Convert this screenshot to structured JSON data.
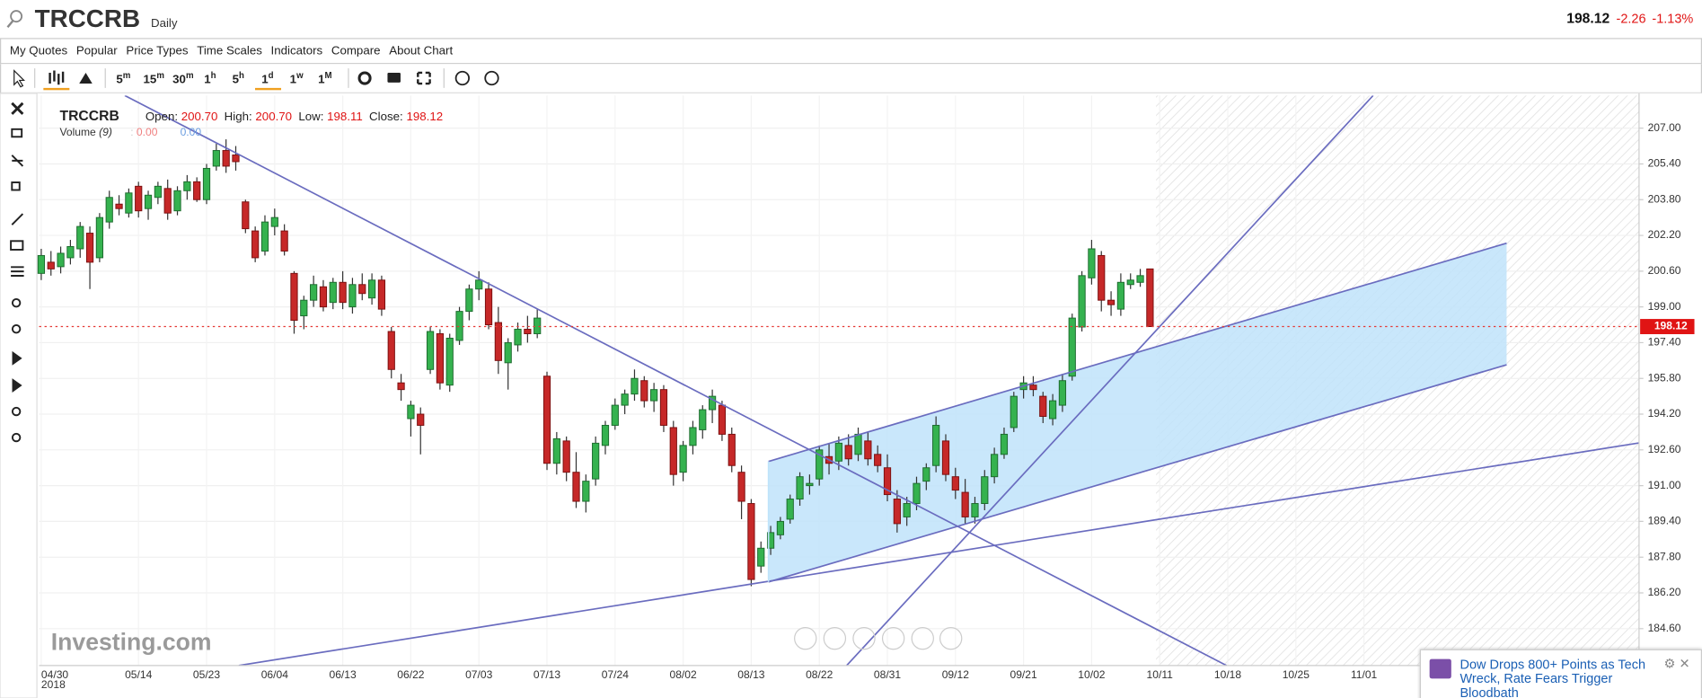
{
  "header": {
    "symbol": "TRCCRB",
    "interval": "Daily",
    "price": "198.12",
    "change": "-2.26",
    "change_pct": "-1.13%"
  },
  "menu": [
    "My Quotes",
    "Popular",
    "Price Types",
    "Time Scales",
    "Indicators",
    "Compare",
    "About Chart"
  ],
  "toolbar": {
    "timeframes": [
      {
        "num": "5",
        "unit": "m"
      },
      {
        "num": "15",
        "unit": "m"
      },
      {
        "num": "30",
        "unit": "m"
      },
      {
        "num": "1",
        "unit": "h"
      },
      {
        "num": "5",
        "unit": "h"
      },
      {
        "num": "1",
        "unit": "d"
      },
      {
        "num": "1",
        "unit": "w"
      },
      {
        "num": "1",
        "unit": "M"
      }
    ]
  },
  "chart_data": {
    "type": "candlestick",
    "legend": {
      "symbol": "TRCCRB",
      "open_label": "Open:",
      "open": "200.70",
      "high_label": "High:",
      "high": "200.70",
      "low_label": "Low:",
      "low": "198.11",
      "close_label": "Close:",
      "close": "198.12"
    },
    "volume": {
      "label": "Volume",
      "period": "(9)",
      "separator": ":",
      "value1": "0.00",
      "value2": "0.00"
    },
    "year_label": "2018",
    "watermark": "Investing.com",
    "categories": [
      "04/30",
      null,
      null,
      null,
      null,
      null,
      null,
      null,
      null,
      null,
      "05/14",
      null,
      null,
      null,
      null,
      null,
      null,
      "05/23",
      null,
      null,
      null,
      null,
      null,
      null,
      "06/04",
      null,
      null,
      null,
      null,
      null,
      null,
      "06/13",
      null,
      null,
      null,
      null,
      null,
      null,
      "06/22",
      null,
      null,
      null,
      null,
      null,
      null,
      "07/03",
      null,
      null,
      null,
      null,
      null,
      null,
      "07/13",
      null,
      null,
      null,
      null,
      null,
      null,
      "07/24",
      null,
      null,
      null,
      null,
      null,
      null,
      "08/02",
      null,
      null,
      null,
      null,
      null,
      null,
      "08/13",
      null,
      null,
      null,
      null,
      null,
      null,
      "08/22",
      null,
      null,
      null,
      null,
      null,
      null,
      "08/31",
      null,
      null,
      null,
      null,
      null,
      null,
      "09/12",
      null,
      null,
      null,
      null,
      null,
      null,
      "09/21",
      null,
      null,
      null,
      null,
      null,
      null,
      "10/02",
      null,
      null,
      null,
      null,
      null,
      null,
      "10/11",
      null,
      null,
      null,
      null,
      null,
      null,
      "10/18",
      null,
      null,
      null,
      null,
      null,
      null,
      "10/25",
      null,
      null,
      null,
      null,
      null,
      null,
      "11/01"
    ],
    "open": [
      200.5,
      201.0,
      200.8,
      201.2,
      201.6,
      202.3,
      201.2,
      202.8,
      203.6,
      203.2,
      204.4,
      203.4,
      203.9,
      204.3,
      203.3,
      204.2,
      204.6,
      203.8,
      205.3,
      206.0,
      205.8,
      203.7,
      202.4,
      201.5,
      202.6,
      202.4,
      200.5,
      198.6,
      199.3,
      199.9,
      199.2,
      200.1,
      199.0,
      200.0,
      199.4,
      200.2,
      197.9,
      195.6,
      194.0,
      194.2,
      196.2,
      197.8,
      195.5,
      197.5,
      198.8,
      199.8,
      199.8,
      198.3,
      196.5,
      197.3,
      198.0,
      197.8,
      195.9,
      192.0,
      193.0,
      191.6,
      190.3,
      191.3,
      192.8,
      193.7,
      194.6,
      195.1,
      195.7,
      194.8,
      195.3,
      193.6,
      191.6,
      192.8,
      193.5,
      194.4,
      194.6,
      193.3,
      191.6,
      190.2,
      187.4,
      188.2,
      188.8,
      189.5,
      190.4,
      191.0,
      191.3,
      192.3,
      192.1,
      192.8,
      192.4,
      193.0,
      192.4,
      191.8,
      190.4,
      189.6,
      190.2,
      191.2,
      191.9,
      193.0,
      191.4,
      190.7,
      189.6,
      190.2,
      191.4,
      192.4,
      193.6,
      195.3,
      195.5,
      195.0,
      194.0,
      194.6,
      195.9,
      198.1,
      200.3,
      201.3,
      199.3,
      198.9,
      200.0,
      200.1,
      200.7,
      null,
      null,
      null,
      null,
      null,
      null,
      null,
      null,
      null,
      null,
      null,
      null,
      null,
      null,
      null,
      null,
      null,
      null,
      null,
      null,
      null,
      null
    ],
    "high": [
      201.6,
      201.5,
      201.7,
      202.0,
      202.8,
      202.6,
      203.2,
      204.2,
      204.0,
      204.3,
      204.6,
      204.2,
      204.6,
      204.7,
      204.4,
      204.9,
      204.8,
      205.4,
      206.3,
      206.5,
      206.2,
      203.8,
      202.6,
      203.1,
      203.4,
      202.7,
      200.6,
      199.5,
      200.4,
      200.2,
      200.3,
      200.6,
      200.3,
      200.5,
      200.5,
      200.4,
      198.1,
      196.0,
      194.8,
      194.5,
      198.1,
      198.0,
      197.8,
      199.0,
      200.0,
      200.6,
      200.1,
      199.0,
      197.6,
      198.3,
      198.6,
      198.9,
      196.1,
      193.4,
      193.2,
      192.5,
      191.5,
      193.2,
      193.9,
      194.9,
      195.3,
      196.2,
      195.9,
      195.6,
      195.5,
      193.9,
      193.0,
      193.9,
      194.6,
      195.3,
      194.8,
      193.6,
      191.9,
      190.4,
      188.5,
      189.2,
      189.6,
      190.6,
      191.6,
      191.5,
      192.8,
      192.9,
      193.2,
      193.3,
      193.6,
      193.4,
      192.8,
      192.4,
      190.8,
      190.5,
      191.4,
      192.0,
      194.1,
      193.3,
      191.8,
      191.3,
      190.5,
      191.7,
      192.7,
      193.6,
      195.2,
      195.9,
      195.9,
      195.2,
      195.1,
      196.0,
      198.7,
      200.6,
      202.0,
      201.5,
      199.7,
      200.5,
      200.5,
      200.7,
      200.7,
      null,
      null,
      null,
      null,
      null,
      null,
      null,
      null,
      null,
      null,
      null,
      null,
      null,
      null,
      null,
      null,
      null,
      null,
      null,
      null,
      null,
      null
    ],
    "low": [
      200.2,
      200.4,
      200.5,
      200.9,
      201.2,
      199.8,
      201.0,
      202.5,
      203.1,
      203.0,
      203.0,
      202.9,
      203.6,
      202.9,
      203.1,
      203.8,
      203.7,
      203.6,
      205.1,
      205.0,
      205.1,
      202.3,
      201.0,
      201.3,
      202.2,
      201.3,
      197.8,
      198.0,
      199.0,
      198.8,
      198.9,
      198.9,
      198.7,
      199.3,
      199.1,
      198.6,
      195.8,
      194.8,
      193.2,
      192.4,
      196.0,
      195.3,
      195.2,
      197.3,
      198.4,
      199.3,
      198.0,
      196.0,
      195.3,
      197.0,
      197.4,
      197.6,
      191.7,
      191.5,
      191.2,
      190.0,
      189.8,
      191.0,
      192.4,
      193.5,
      194.2,
      194.8,
      194.5,
      194.3,
      193.4,
      191.0,
      191.2,
      192.4,
      193.1,
      193.8,
      193.0,
      191.6,
      189.5,
      186.5,
      187.1,
      187.9,
      188.6,
      189.3,
      190.1,
      190.6,
      191.0,
      191.5,
      191.7,
      191.9,
      192.1,
      191.9,
      191.6,
      190.3,
      188.9,
      189.2,
      189.9,
      190.8,
      191.6,
      191.2,
      190.4,
      189.3,
      189.3,
      189.9,
      191.1,
      192.2,
      193.4,
      194.9,
      195.0,
      193.8,
      193.7,
      194.3,
      195.7,
      197.9,
      200.0,
      198.8,
      198.6,
      198.6,
      199.8,
      199.9,
      198.11,
      null,
      null,
      null,
      null,
      null,
      null,
      null,
      null,
      null,
      null,
      null,
      null,
      null,
      null,
      null,
      null,
      null,
      null,
      null,
      null,
      null,
      null
    ],
    "close": [
      201.3,
      200.7,
      201.4,
      201.7,
      202.6,
      201.0,
      203.0,
      203.9,
      203.4,
      204.1,
      203.3,
      204.0,
      204.4,
      203.2,
      204.2,
      204.6,
      203.8,
      205.2,
      206.0,
      205.3,
      205.5,
      202.5,
      201.2,
      202.8,
      203.0,
      201.5,
      198.4,
      199.3,
      200.0,
      199.0,
      200.1,
      199.2,
      200.0,
      199.6,
      200.2,
      198.9,
      196.2,
      195.3,
      194.6,
      193.7,
      197.9,
      195.6,
      197.6,
      198.8,
      199.8,
      200.2,
      198.2,
      196.6,
      197.4,
      198.0,
      197.8,
      198.5,
      192.0,
      193.1,
      191.6,
      190.3,
      191.2,
      192.9,
      193.7,
      194.6,
      195.1,
      195.8,
      194.8,
      195.3,
      193.7,
      191.5,
      192.8,
      193.6,
      194.4,
      195.0,
      193.3,
      191.9,
      190.3,
      186.8,
      188.2,
      188.9,
      189.4,
      190.4,
      191.4,
      191.1,
      192.6,
      192.0,
      192.9,
      192.2,
      193.3,
      192.2,
      191.9,
      190.6,
      189.3,
      190.2,
      191.1,
      191.8,
      193.7,
      191.5,
      190.8,
      189.6,
      190.2,
      191.4,
      192.4,
      193.3,
      195.0,
      195.6,
      195.3,
      194.1,
      194.8,
      195.7,
      198.5,
      200.4,
      201.6,
      199.3,
      199.1,
      200.1,
      200.2,
      200.4,
      198.12,
      null,
      null,
      null,
      null,
      null,
      null,
      null,
      null,
      null,
      null,
      null,
      null,
      null,
      null,
      null,
      null,
      null,
      null,
      null,
      null,
      null,
      null
    ],
    "ylim": [
      182.95,
      208.46
    ],
    "yticks": [
      {
        "value": 207,
        "label": "207.00"
      },
      {
        "value": 205.4,
        "label": "205.40"
      },
      {
        "value": 203.8,
        "label": "203.80"
      },
      {
        "value": 202.2,
        "label": "202.20"
      },
      {
        "value": 200.6,
        "label": "200.60"
      },
      {
        "value": 199,
        "label": "199.00"
      },
      {
        "value": 197.4,
        "label": "197.40"
      },
      {
        "value": 195.8,
        "label": "195.80"
      },
      {
        "value": 194.2,
        "label": "194.20"
      },
      {
        "value": 192.6,
        "label": "192.60"
      },
      {
        "value": 191,
        "label": "191.00"
      },
      {
        "value": 189.4,
        "label": "189.40"
      },
      {
        "value": 187.8,
        "label": "187.80"
      },
      {
        "value": 186.2,
        "label": "186.20"
      },
      {
        "value": 184.6,
        "label": "184.60"
      }
    ],
    "last_price": 198.12,
    "up_color": "#35b24f",
    "down_color": "#c62828",
    "grid": true
  },
  "news": {
    "headline": "Dow Drops 800+ Points as Tech Wreck, Rate Fears Trigger Bloodbath"
  }
}
